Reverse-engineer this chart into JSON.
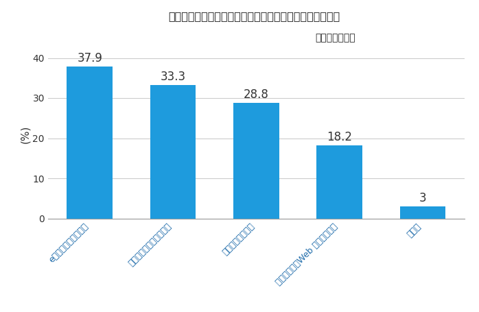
{
  "title_line1": "【今後、社内研修で導入したいシステムはありますか？】",
  "title_line2": "（複数回答可）",
  "ylabel": "(%)",
  "categories": [
    "eラーニングシステム",
    "動画配信／管理システム",
    "学習管理システム",
    "ウェビナー／Web 会議システム",
    "その他"
  ],
  "values": [
    37.9,
    33.3,
    28.8,
    18.2,
    3
  ],
  "bar_color": "#1E9BDD",
  "ylim": [
    0,
    42
  ],
  "yticks": [
    0,
    10,
    20,
    30,
    40
  ],
  "background_color": "#ffffff",
  "grid_color": "#cccccc",
  "tick_label_color": "#1E6BAA",
  "value_label_color": "#333333",
  "title_color": "#222222",
  "title_fontsize": 11.5,
  "subtitle_fontsize": 10,
  "bar_label_fontsize": 12,
  "tick_fontsize": 10,
  "xlabel_fontsize": 9,
  "ylabel_fontsize": 11
}
